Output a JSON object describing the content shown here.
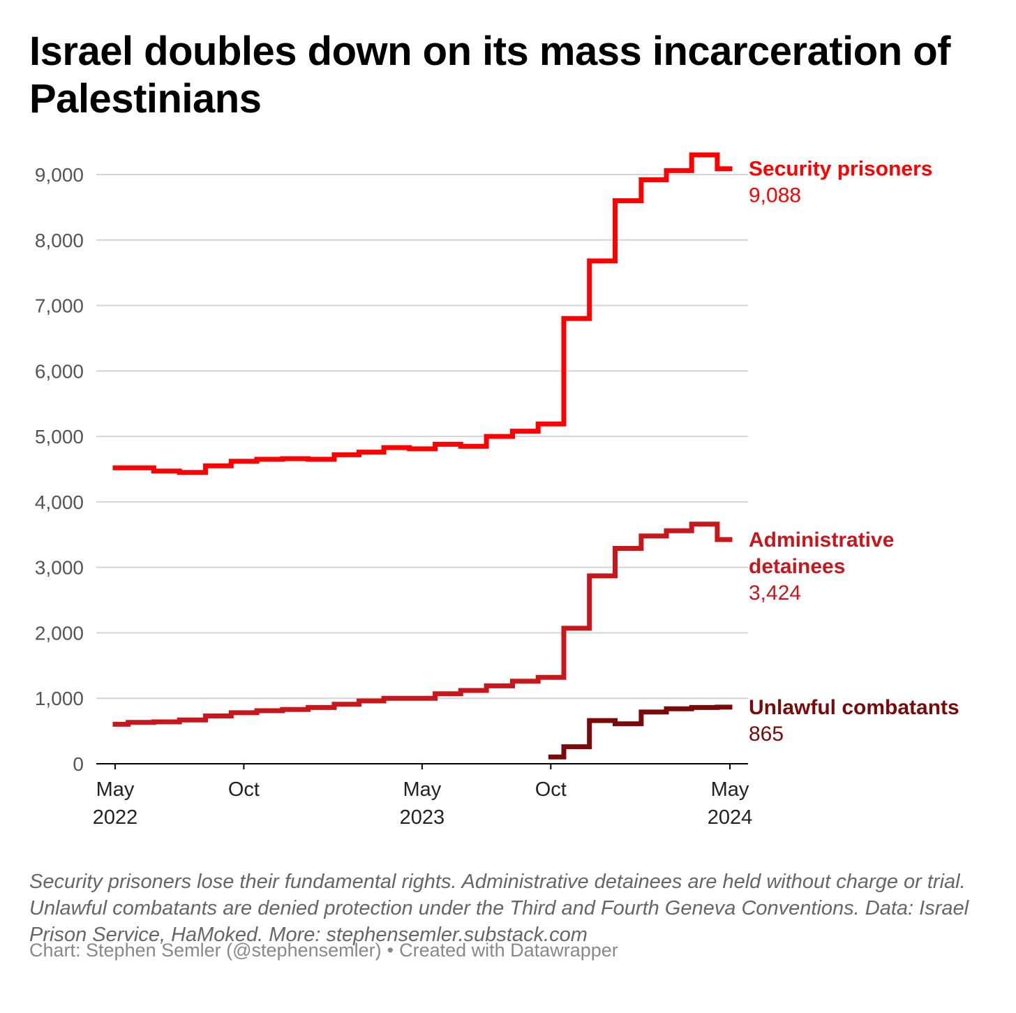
{
  "title": "Israel doubles down on its mass incarceration of Palestinians",
  "notes": "Security prisoners lose their fundamental rights. Administrative detainees are held without charge or trial. Unlawful combatants are denied protection under the Third and Fourth Geneva Conventions. Data: Israel Prison Service, HaMoked. More: stephensemler.substack.com",
  "credit": {
    "author": "Chart: Stephen Semler (@stephensemler)",
    "separator": "•",
    "tool": "Created with Datawrapper"
  },
  "chart_data": {
    "type": "line",
    "step": true,
    "ylim": [
      0,
      9300
    ],
    "yticks": [
      0,
      1000,
      2000,
      3000,
      4000,
      5000,
      6000,
      7000,
      8000,
      9000
    ],
    "ytick_labels": [
      "0",
      "1,000",
      "2,000",
      "3,000",
      "4,000",
      "5,000",
      "6,000",
      "7,000",
      "8,000",
      "9,000"
    ],
    "xticks": [
      {
        "date": "2022-05-01",
        "line1": "May",
        "line2": "2022"
      },
      {
        "date": "2022-10-01",
        "line1": "Oct",
        "line2": ""
      },
      {
        "date": "2023-05-01",
        "line1": "May",
        "line2": "2023"
      },
      {
        "date": "2023-10-01",
        "line1": "Oct",
        "line2": ""
      },
      {
        "date": "2024-05-01",
        "line1": "May",
        "line2": "2024"
      }
    ],
    "grid": true,
    "series": [
      {
        "name": "Security prisoners",
        "label_lines": [
          "Security prisoners"
        ],
        "last_value_label": "9,088",
        "color": "#ff0000",
        "x": [
          "2022-05-01",
          "2022-06-01",
          "2022-07-01",
          "2022-08-01",
          "2022-09-01",
          "2022-10-01",
          "2022-11-01",
          "2022-12-01",
          "2023-01-01",
          "2023-02-01",
          "2023-03-01",
          "2023-04-01",
          "2023-05-01",
          "2023-06-01",
          "2023-07-01",
          "2023-08-01",
          "2023-09-01",
          "2023-10-01",
          "2023-11-01",
          "2023-12-01",
          "2024-01-01",
          "2024-02-01",
          "2024-03-01",
          "2024-04-01",
          "2024-05-01"
        ],
        "y": [
          4520,
          4520,
          4470,
          4450,
          4550,
          4620,
          4650,
          4660,
          4650,
          4720,
          4760,
          4830,
          4810,
          4880,
          4850,
          5000,
          5080,
          5190,
          6800,
          7680,
          8600,
          8920,
          9060,
          9300,
          9088
        ]
      },
      {
        "name": "Administrative detainees",
        "label_lines": [
          "Administrative",
          "detainees"
        ],
        "last_value_label": "3,424",
        "color": "#c8161d",
        "x": [
          "2022-05-01",
          "2022-06-01",
          "2022-07-01",
          "2022-08-01",
          "2022-09-01",
          "2022-10-01",
          "2022-11-01",
          "2022-12-01",
          "2023-01-01",
          "2023-02-01",
          "2023-03-01",
          "2023-04-01",
          "2023-05-01",
          "2023-06-01",
          "2023-07-01",
          "2023-08-01",
          "2023-09-01",
          "2023-10-01",
          "2023-11-01",
          "2023-12-01",
          "2024-01-01",
          "2024-02-01",
          "2024-03-01",
          "2024-04-01",
          "2024-05-01"
        ],
        "y": [
          604,
          631,
          640,
          670,
          730,
          780,
          810,
          830,
          860,
          910,
          960,
          1000,
          1000,
          1070,
          1120,
          1190,
          1260,
          1320,
          2070,
          2870,
          3290,
          3480,
          3560,
          3660,
          3424
        ]
      },
      {
        "name": "Unlawful combatants",
        "label_lines": [
          "Unlawful combatants"
        ],
        "last_value_label": "865",
        "color": "#7a0a0a",
        "x": [
          "2023-10-01",
          "2023-11-01",
          "2023-12-01",
          "2024-01-01",
          "2024-02-01",
          "2024-03-01",
          "2024-04-01",
          "2024-05-01"
        ],
        "y": [
          105,
          260,
          660,
          610,
          790,
          840,
          860,
          865
        ]
      }
    ]
  }
}
